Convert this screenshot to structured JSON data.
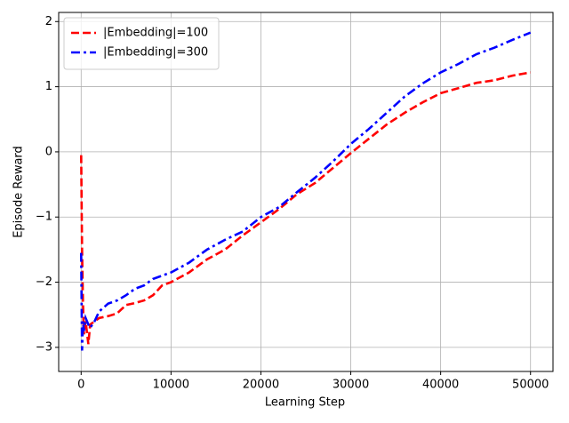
{
  "chart_data": {
    "type": "line",
    "xlabel": "Learning Step",
    "ylabel": "Episode Reward",
    "x": [
      0,
      100,
      200,
      300,
      500,
      800,
      1000,
      1500,
      2000,
      3000,
      4000,
      5000,
      6000,
      7000,
      8000,
      9000,
      10000,
      12000,
      14000,
      16000,
      18000,
      20000,
      22000,
      24000,
      26000,
      28000,
      30000,
      32000,
      34000,
      36000,
      38000,
      40000,
      42000,
      44000,
      46000,
      48000,
      50000
    ],
    "series": [
      {
        "name": "|Embedding|=100",
        "color": "#ff0000",
        "linestyle": "dashed",
        "values": [
          -0.05,
          -1.5,
          -2.3,
          -2.8,
          -2.6,
          -2.95,
          -2.65,
          -2.6,
          -2.55,
          -2.52,
          -2.48,
          -2.35,
          -2.32,
          -2.28,
          -2.2,
          -2.05,
          -2.0,
          -1.85,
          -1.65,
          -1.5,
          -1.28,
          -1.08,
          -0.88,
          -0.65,
          -0.48,
          -0.25,
          -0.02,
          0.2,
          0.42,
          0.6,
          0.76,
          0.9,
          0.98,
          1.06,
          1.1,
          1.17,
          1.22
        ]
      },
      {
        "name": "|Embedding|=300",
        "color": "#0000ff",
        "linestyle": "dashdot",
        "values": [
          -1.55,
          -3.05,
          -2.6,
          -2.75,
          -2.55,
          -2.65,
          -2.7,
          -2.6,
          -2.45,
          -2.33,
          -2.28,
          -2.2,
          -2.1,
          -2.05,
          -1.95,
          -1.9,
          -1.85,
          -1.7,
          -1.5,
          -1.35,
          -1.22,
          -1.0,
          -0.85,
          -0.62,
          -0.4,
          -0.15,
          0.12,
          0.35,
          0.6,
          0.85,
          1.05,
          1.22,
          1.35,
          1.5,
          1.6,
          1.72,
          1.83
        ]
      }
    ],
    "xlim": [
      -2500,
      52500
    ],
    "xticks": [
      0,
      10000,
      20000,
      30000,
      40000,
      50000
    ],
    "ylim": [
      -3.37,
      2.14
    ],
    "yticks": [
      {
        "value": -3,
        "label": "−3"
      },
      {
        "value": -2,
        "label": "−2"
      },
      {
        "value": -1,
        "label": "−1"
      },
      0,
      1,
      2
    ],
    "grid": true,
    "legend": "upper left"
  }
}
